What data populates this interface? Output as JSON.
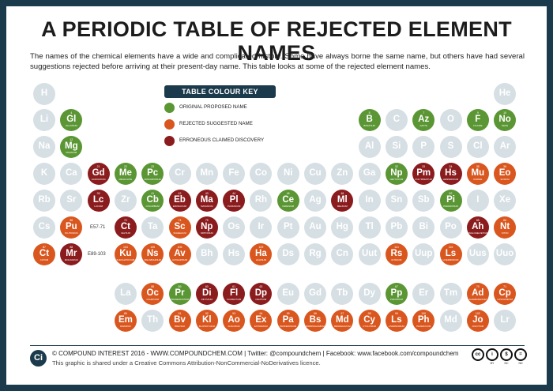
{
  "title": "A PERIODIC TABLE OF REJECTED ELEMENT NAMES",
  "intro": "The names of the chemical elements have a wide and complicated history. Some have always borne the same name, but others have had several suggestions rejected before arriving at their present-day name. This table looks at some of the rejected element names.",
  "key": {
    "heading": "TABLE COLOUR KEY",
    "items": [
      {
        "label": "ORIGINAL PROPOSED NAME",
        "color": "#5b9634"
      },
      {
        "label": "REJECTED SUGGESTED NAME",
        "color": "#d9571f"
      },
      {
        "label": "ERRONEOUS CLAIMED DISCOVERY",
        "color": "#8b1c1e"
      }
    ]
  },
  "ranges": {
    "r1": "E57-71",
    "r2": "E89-103"
  },
  "colors": {
    "grey": "#d6dfe4",
    "green": "#5b9634",
    "orange": "#d9571f",
    "red": "#8b1c1e",
    "navy": "#1b3a4b"
  },
  "elements": [
    {
      "sym": "H",
      "num": "",
      "name": "",
      "t": "grey",
      "r": 0,
      "c": 0
    },
    {
      "sym": "He",
      "num": "",
      "name": "",
      "t": "grey",
      "r": 0,
      "c": 17
    },
    {
      "sym": "Li",
      "num": "",
      "name": "",
      "t": "grey",
      "r": 1,
      "c": 0
    },
    {
      "sym": "Gl",
      "num": "4",
      "name": "GLUCINUM",
      "t": "green",
      "r": 1,
      "c": 1
    },
    {
      "sym": "B",
      "num": "5",
      "name": "BORATIUM",
      "t": "green",
      "r": 1,
      "c": 12
    },
    {
      "sym": "C",
      "num": "",
      "name": "",
      "t": "grey",
      "r": 1,
      "c": 13
    },
    {
      "sym": "Az",
      "num": "7",
      "name": "AZOTE",
      "t": "green",
      "r": 1,
      "c": 14
    },
    {
      "sym": "O",
      "num": "",
      "name": "",
      "t": "grey",
      "r": 1,
      "c": 15
    },
    {
      "sym": "F",
      "num": "9",
      "name": "FLUORE",
      "t": "green",
      "r": 1,
      "c": 16
    },
    {
      "sym": "No",
      "num": "10",
      "name": "NEON",
      "t": "green",
      "r": 1,
      "c": 17
    },
    {
      "sym": "Na",
      "num": "",
      "name": "",
      "t": "grey",
      "r": 2,
      "c": 0
    },
    {
      "sym": "Mg",
      "num": "12",
      "name": "MAGNIUM",
      "t": "green",
      "r": 2,
      "c": 1
    },
    {
      "sym": "Al",
      "num": "",
      "name": "",
      "t": "grey",
      "r": 2,
      "c": 12
    },
    {
      "sym": "Si",
      "num": "",
      "name": "",
      "t": "grey",
      "r": 2,
      "c": 13
    },
    {
      "sym": "P",
      "num": "",
      "name": "",
      "t": "grey",
      "r": 2,
      "c": 14
    },
    {
      "sym": "S",
      "num": "",
      "name": "",
      "t": "grey",
      "r": 2,
      "c": 15
    },
    {
      "sym": "Cl",
      "num": "",
      "name": "",
      "t": "grey",
      "r": 2,
      "c": 16
    },
    {
      "sym": "Ar",
      "num": "",
      "name": "",
      "t": "grey",
      "r": 2,
      "c": 17
    },
    {
      "sym": "K",
      "num": "",
      "name": "",
      "t": "grey",
      "r": 3,
      "c": 0
    },
    {
      "sym": "Ca",
      "num": "",
      "name": "",
      "t": "grey",
      "r": 3,
      "c": 1
    },
    {
      "sym": "Gd",
      "num": "21",
      "name": "GADOLINIUM",
      "t": "red",
      "r": 3,
      "c": 2
    },
    {
      "sym": "Me",
      "num": "22",
      "name": "MENACHITE",
      "t": "green",
      "r": 3,
      "c": 3
    },
    {
      "sym": "Pc",
      "num": "23",
      "name": "PANCHROMIUM",
      "t": "green",
      "r": 3,
      "c": 4
    },
    {
      "sym": "Cr",
      "num": "",
      "name": "",
      "t": "grey",
      "r": 3,
      "c": 5
    },
    {
      "sym": "Mn",
      "num": "",
      "name": "",
      "t": "grey",
      "r": 3,
      "c": 6
    },
    {
      "sym": "Fe",
      "num": "",
      "name": "",
      "t": "grey",
      "r": 3,
      "c": 7
    },
    {
      "sym": "Co",
      "num": "",
      "name": "",
      "t": "grey",
      "r": 3,
      "c": 8
    },
    {
      "sym": "Ni",
      "num": "",
      "name": "",
      "t": "grey",
      "r": 3,
      "c": 9
    },
    {
      "sym": "Cu",
      "num": "",
      "name": "",
      "t": "grey",
      "r": 3,
      "c": 10
    },
    {
      "sym": "Zn",
      "num": "",
      "name": "",
      "t": "grey",
      "r": 3,
      "c": 11
    },
    {
      "sym": "Ga",
      "num": "",
      "name": "",
      "t": "grey",
      "r": 3,
      "c": 12
    },
    {
      "sym": "Np",
      "num": "32",
      "name": "NEPTUNIUM",
      "t": "green",
      "r": 3,
      "c": 13
    },
    {
      "sym": "Pm",
      "num": "33",
      "name": "POLYMNESTUM",
      "t": "red",
      "r": 3,
      "c": 14
    },
    {
      "sym": "Hs",
      "num": "34",
      "name": "HESPERIDIUM",
      "t": "red",
      "r": 3,
      "c": 15
    },
    {
      "sym": "Mu",
      "num": "35",
      "name": "MURIDE",
      "t": "orange",
      "r": 3,
      "c": 16
    },
    {
      "sym": "Eo",
      "num": "36",
      "name": "EOSIUM",
      "t": "orange",
      "r": 3,
      "c": 17
    },
    {
      "sym": "Rb",
      "num": "",
      "name": "",
      "t": "grey",
      "r": 4,
      "c": 0
    },
    {
      "sym": "Sr",
      "num": "",
      "name": "",
      "t": "grey",
      "r": 4,
      "c": 1
    },
    {
      "sym": "Lc",
      "num": "39",
      "name": "LUCIUM",
      "t": "red",
      "r": 4,
      "c": 2
    },
    {
      "sym": "Zr",
      "num": "",
      "name": "",
      "t": "grey",
      "r": 4,
      "c": 3
    },
    {
      "sym": "Cb",
      "num": "41",
      "name": "COLUMBIUM",
      "t": "green",
      "r": 4,
      "c": 4
    },
    {
      "sym": "Eb",
      "num": "42",
      "name": "EBORACIUM",
      "t": "red",
      "r": 4,
      "c": 5
    },
    {
      "sym": "Ma",
      "num": "43",
      "name": "MASURIUM",
      "t": "red",
      "r": 4,
      "c": 6
    },
    {
      "sym": "Pl",
      "num": "44",
      "name": "PLURANIUM",
      "t": "red",
      "r": 4,
      "c": 7
    },
    {
      "sym": "Rh",
      "num": "",
      "name": "",
      "t": "grey",
      "r": 4,
      "c": 8
    },
    {
      "sym": "Ce",
      "num": "46",
      "name": "CERESIUM",
      "t": "green",
      "r": 4,
      "c": 9
    },
    {
      "sym": "Ag",
      "num": "",
      "name": "",
      "t": "grey",
      "r": 4,
      "c": 10
    },
    {
      "sym": "Ml",
      "num": "48",
      "name": "MELINUM",
      "t": "red",
      "r": 4,
      "c": 11
    },
    {
      "sym": "In",
      "num": "",
      "name": "",
      "t": "grey",
      "r": 4,
      "c": 12
    },
    {
      "sym": "Sn",
      "num": "",
      "name": "",
      "t": "grey",
      "r": 4,
      "c": 13
    },
    {
      "sym": "Sb",
      "num": "",
      "name": "",
      "t": "grey",
      "r": 4,
      "c": 14
    },
    {
      "sym": "Pi",
      "num": "52",
      "name": "PARADOXIUM",
      "t": "green",
      "r": 4,
      "c": 15
    },
    {
      "sym": "I",
      "num": "",
      "name": "",
      "t": "grey",
      "r": 4,
      "c": 16
    },
    {
      "sym": "Xe",
      "num": "",
      "name": "",
      "t": "grey",
      "r": 4,
      "c": 17
    },
    {
      "sym": "Cs",
      "num": "",
      "name": "",
      "t": "grey",
      "r": 5,
      "c": 0
    },
    {
      "sym": "Pu",
      "num": "56",
      "name": "PLUTONIUM",
      "t": "orange",
      "r": 5,
      "c": 1
    },
    {
      "sym": "Ct",
      "num": "72",
      "name": "CELTIUM",
      "t": "red",
      "r": 5,
      "c": 3
    },
    {
      "sym": "Ta",
      "num": "",
      "name": "",
      "t": "grey",
      "r": 5,
      "c": 4
    },
    {
      "sym": "Sc",
      "num": "74",
      "name": "SCHEELIUM",
      "t": "orange",
      "r": 5,
      "c": 5
    },
    {
      "sym": "Np",
      "num": "75",
      "name": "NIPPONIUM",
      "t": "red",
      "r": 5,
      "c": 6
    },
    {
      "sym": "Os",
      "num": "",
      "name": "",
      "t": "grey",
      "r": 5,
      "c": 7
    },
    {
      "sym": "Ir",
      "num": "",
      "name": "",
      "t": "grey",
      "r": 5,
      "c": 8
    },
    {
      "sym": "Pt",
      "num": "",
      "name": "",
      "t": "grey",
      "r": 5,
      "c": 9
    },
    {
      "sym": "Au",
      "num": "",
      "name": "",
      "t": "grey",
      "r": 5,
      "c": 10
    },
    {
      "sym": "Hg",
      "num": "",
      "name": "",
      "t": "grey",
      "r": 5,
      "c": 11
    },
    {
      "sym": "Tl",
      "num": "",
      "name": "",
      "t": "grey",
      "r": 5,
      "c": 12
    },
    {
      "sym": "Pb",
      "num": "",
      "name": "",
      "t": "grey",
      "r": 5,
      "c": 13
    },
    {
      "sym": "Bi",
      "num": "",
      "name": "",
      "t": "grey",
      "r": 5,
      "c": 14
    },
    {
      "sym": "Po",
      "num": "",
      "name": "",
      "t": "grey",
      "r": 5,
      "c": 15
    },
    {
      "sym": "Ah",
      "num": "85",
      "name": "ANGLOHELVETIUM",
      "t": "red",
      "r": 5,
      "c": 16
    },
    {
      "sym": "Nt",
      "num": "86",
      "name": "NITON",
      "t": "orange",
      "r": 5,
      "c": 17
    },
    {
      "sym": "Ct",
      "num": "87",
      "name": "CATIUM",
      "t": "orange",
      "r": 6,
      "c": 0
    },
    {
      "sym": "Mr",
      "num": "88",
      "name": "MOLDAVIUM",
      "t": "red",
      "r": 6,
      "c": 1
    },
    {
      "sym": "Ku",
      "num": "104",
      "name": "KURCHATOVIUM",
      "t": "orange",
      "r": 6,
      "c": 3
    },
    {
      "sym": "Ns",
      "num": "105",
      "name": "NIELSBOHRIUM",
      "t": "orange",
      "r": 6,
      "c": 4
    },
    {
      "sym": "Av",
      "num": "106",
      "name": "AVOGADRIUM",
      "t": "orange",
      "r": 6,
      "c": 5
    },
    {
      "sym": "Bh",
      "num": "",
      "name": "",
      "t": "grey",
      "r": 6,
      "c": 6
    },
    {
      "sym": "Hs",
      "num": "",
      "name": "",
      "t": "grey",
      "r": 6,
      "c": 7
    },
    {
      "sym": "Ha",
      "num": "109",
      "name": "HAHNIUM",
      "t": "orange",
      "r": 6,
      "c": 8
    },
    {
      "sym": "Ds",
      "num": "",
      "name": "",
      "t": "grey",
      "r": 6,
      "c": 9
    },
    {
      "sym": "Rg",
      "num": "",
      "name": "",
      "t": "grey",
      "r": 6,
      "c": 10
    },
    {
      "sym": "Cn",
      "num": "",
      "name": "",
      "t": "grey",
      "r": 6,
      "c": 11
    },
    {
      "sym": "Uut",
      "num": "",
      "name": "",
      "t": "grey",
      "r": 6,
      "c": 12
    },
    {
      "sym": "Rs",
      "num": "114",
      "name": "RUSSIUM",
      "t": "orange",
      "r": 6,
      "c": 13
    },
    {
      "sym": "Uup",
      "num": "",
      "name": "",
      "t": "grey",
      "r": 6,
      "c": 14
    },
    {
      "sym": "Ls",
      "num": "116",
      "name": "LIVERMORIUM",
      "t": "orange",
      "r": 6,
      "c": 15
    },
    {
      "sym": "Uus",
      "num": "",
      "name": "",
      "t": "grey",
      "r": 6,
      "c": 16
    },
    {
      "sym": "Uuo",
      "num": "",
      "name": "",
      "t": "grey",
      "r": 6,
      "c": 17
    },
    {
      "sym": "La",
      "num": "",
      "name": "",
      "t": "grey",
      "r": 7,
      "c": 3
    },
    {
      "sym": "Oc",
      "num": "58",
      "name": "OCHROIUM",
      "t": "orange",
      "r": 7,
      "c": 4
    },
    {
      "sym": "Pr",
      "num": "59",
      "name": "PRASEODYMIUM",
      "t": "green",
      "r": 7,
      "c": 5
    },
    {
      "sym": "Di",
      "num": "60",
      "name": "DIDYMIUM",
      "t": "red",
      "r": 7,
      "c": 6
    },
    {
      "sym": "Fl",
      "num": "61",
      "name": "FLORENTIUM",
      "t": "red",
      "r": 7,
      "c": 7
    },
    {
      "sym": "Dp",
      "num": "62",
      "name": "DECIPIUM",
      "t": "red",
      "r": 7,
      "c": 8
    },
    {
      "sym": "Eu",
      "num": "",
      "name": "",
      "t": "grey",
      "r": 7,
      "c": 9
    },
    {
      "sym": "Gd",
      "num": "",
      "name": "",
      "t": "grey",
      "r": 7,
      "c": 10
    },
    {
      "sym": "Tb",
      "num": "",
      "name": "",
      "t": "grey",
      "r": 7,
      "c": 11
    },
    {
      "sym": "Dy",
      "num": "",
      "name": "",
      "t": "grey",
      "r": 7,
      "c": 12
    },
    {
      "sym": "Pp",
      "num": "67",
      "name": "PHILIPPIUM",
      "t": "green",
      "r": 7,
      "c": 13
    },
    {
      "sym": "Er",
      "num": "",
      "name": "",
      "t": "grey",
      "r": 7,
      "c": 14
    },
    {
      "sym": "Tm",
      "num": "",
      "name": "",
      "t": "grey",
      "r": 7,
      "c": 15
    },
    {
      "sym": "Ad",
      "num": "70",
      "name": "ALDEBARANIUM",
      "t": "orange",
      "r": 7,
      "c": 16
    },
    {
      "sym": "Cp",
      "num": "71",
      "name": "CASSIOPEIUM",
      "t": "orange",
      "r": 7,
      "c": 17
    },
    {
      "sym": "Em",
      "num": "89",
      "name": "EMANIUM",
      "t": "orange",
      "r": 8,
      "c": 3
    },
    {
      "sym": "Th",
      "num": "",
      "name": "",
      "t": "grey",
      "r": 8,
      "c": 4
    },
    {
      "sym": "Bv",
      "num": "91",
      "name": "BREVIUM",
      "t": "orange",
      "r": 8,
      "c": 5
    },
    {
      "sym": "Kl",
      "num": "92",
      "name": "KLAPROTHIUM",
      "t": "orange",
      "r": 8,
      "c": 6
    },
    {
      "sym": "Ao",
      "num": "93",
      "name": "AUSONIUM",
      "t": "orange",
      "r": 8,
      "c": 7
    },
    {
      "sym": "Ex",
      "num": "94",
      "name": "EXTREMIUM",
      "t": "orange",
      "r": 8,
      "c": 8
    },
    {
      "sym": "Pa",
      "num": "95",
      "name": "PANDEMONIUM",
      "t": "orange",
      "r": 8,
      "c": 9
    },
    {
      "sym": "Bs",
      "num": "96",
      "name": "BIRMINGHAMIUM",
      "t": "orange",
      "r": 8,
      "c": 10
    },
    {
      "sym": "Md",
      "num": "97",
      "name": "MENDELEVIUM",
      "t": "orange",
      "r": 8,
      "c": 11
    },
    {
      "sym": "Cy",
      "num": "98",
      "name": "CYCLONIUM",
      "t": "orange",
      "r": 8,
      "c": 12
    },
    {
      "sym": "Ls",
      "num": "99",
      "name": "LIVERMORIUM",
      "t": "orange",
      "r": 8,
      "c": 13
    },
    {
      "sym": "Ph",
      "num": "100",
      "name": "PHOENICIUM",
      "t": "orange",
      "r": 8,
      "c": 14
    },
    {
      "sym": "Md",
      "num": "",
      "name": "",
      "t": "grey",
      "r": 8,
      "c": 15
    },
    {
      "sym": "Jo",
      "num": "102",
      "name": "JOLIOTIUM",
      "t": "orange",
      "r": 8,
      "c": 16
    },
    {
      "sym": "Lr",
      "num": "",
      "name": "",
      "t": "grey",
      "r": 8,
      "c": 17
    }
  ],
  "footer": {
    "logo": "Ci",
    "line1": "© COMPOUND INTEREST 2016 - WWW.COMPOUNDCHEM.COM | Twitter: @compoundchem | Facebook: www.facebook.com/compoundchem",
    "line2": "This graphic is shared under a Creative Commons Attribution-NonCommercial-NoDerivatives licence.",
    "cc": [
      {
        "glyph": "cc",
        "label": ""
      },
      {
        "glyph": "i",
        "label": "BY"
      },
      {
        "glyph": "$",
        "label": "NC"
      },
      {
        "glyph": "=",
        "label": "ND"
      }
    ]
  }
}
